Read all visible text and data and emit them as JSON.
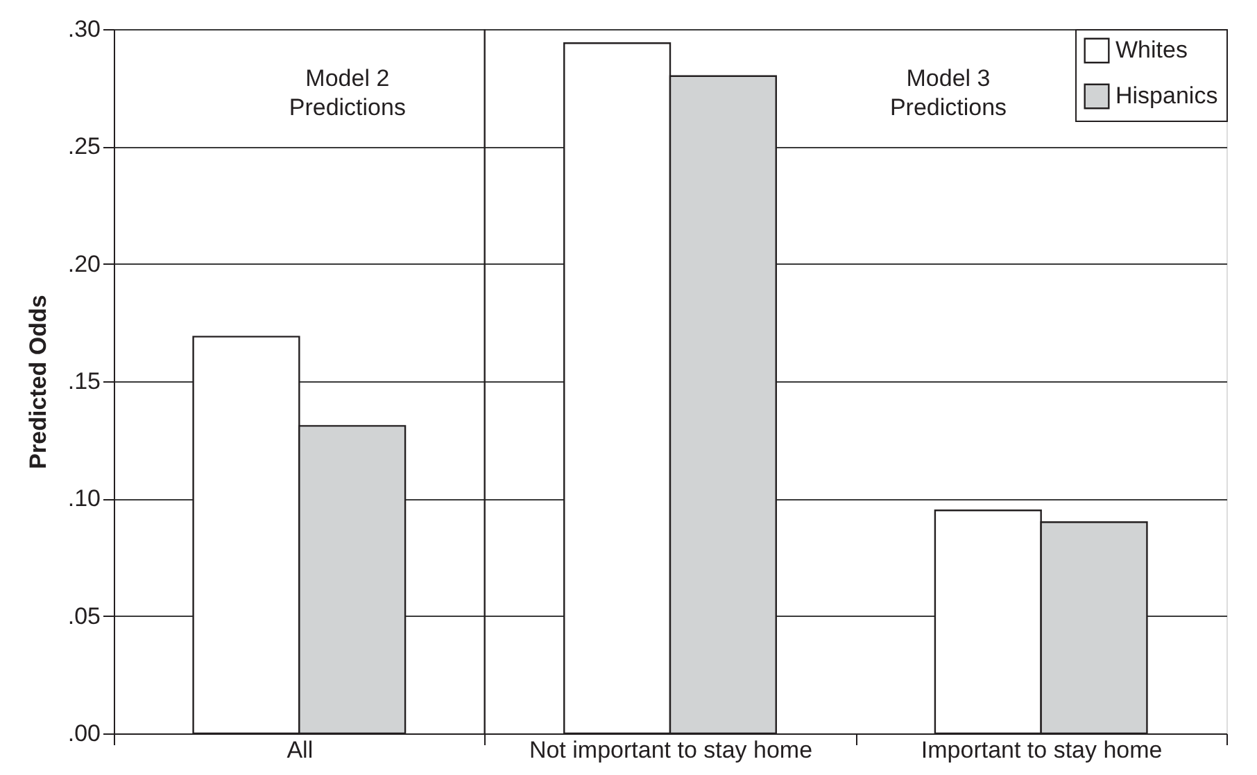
{
  "chart_data": {
    "type": "bar",
    "ylabel": "Predicted Odds",
    "categories": [
      "All",
      "Not important to stay home",
      "Important to stay home"
    ],
    "series": [
      {
        "name": "Whites",
        "color": "#ffffff",
        "values": [
          0.169,
          0.294,
          0.095
        ]
      },
      {
        "name": "Hispanics",
        "color": "#d1d3d4",
        "values": [
          0.131,
          0.28,
          0.09
        ]
      }
    ],
    "ylim": [
      0,
      0.3
    ],
    "yticks": [
      {
        "value": 0,
        "label": ".00"
      },
      {
        "value": 0.05,
        "label": ".05"
      },
      {
        "value": 0.1,
        "label": ".10"
      },
      {
        "value": 0.15,
        "label": ".15"
      },
      {
        "value": 0.2,
        "label": ".20"
      },
      {
        "value": 0.25,
        "label": ".25"
      },
      {
        "value": 0.3,
        "label": ".30"
      }
    ],
    "grid": "y",
    "legend": "top right",
    "ref_lines": [
      {
        "axis": "x",
        "value": "Not important to stay home",
        "color": "#231f20"
      }
    ],
    "annotations": [
      "Model 2\nPredictions",
      "Model 3\nPredictions"
    ]
  }
}
